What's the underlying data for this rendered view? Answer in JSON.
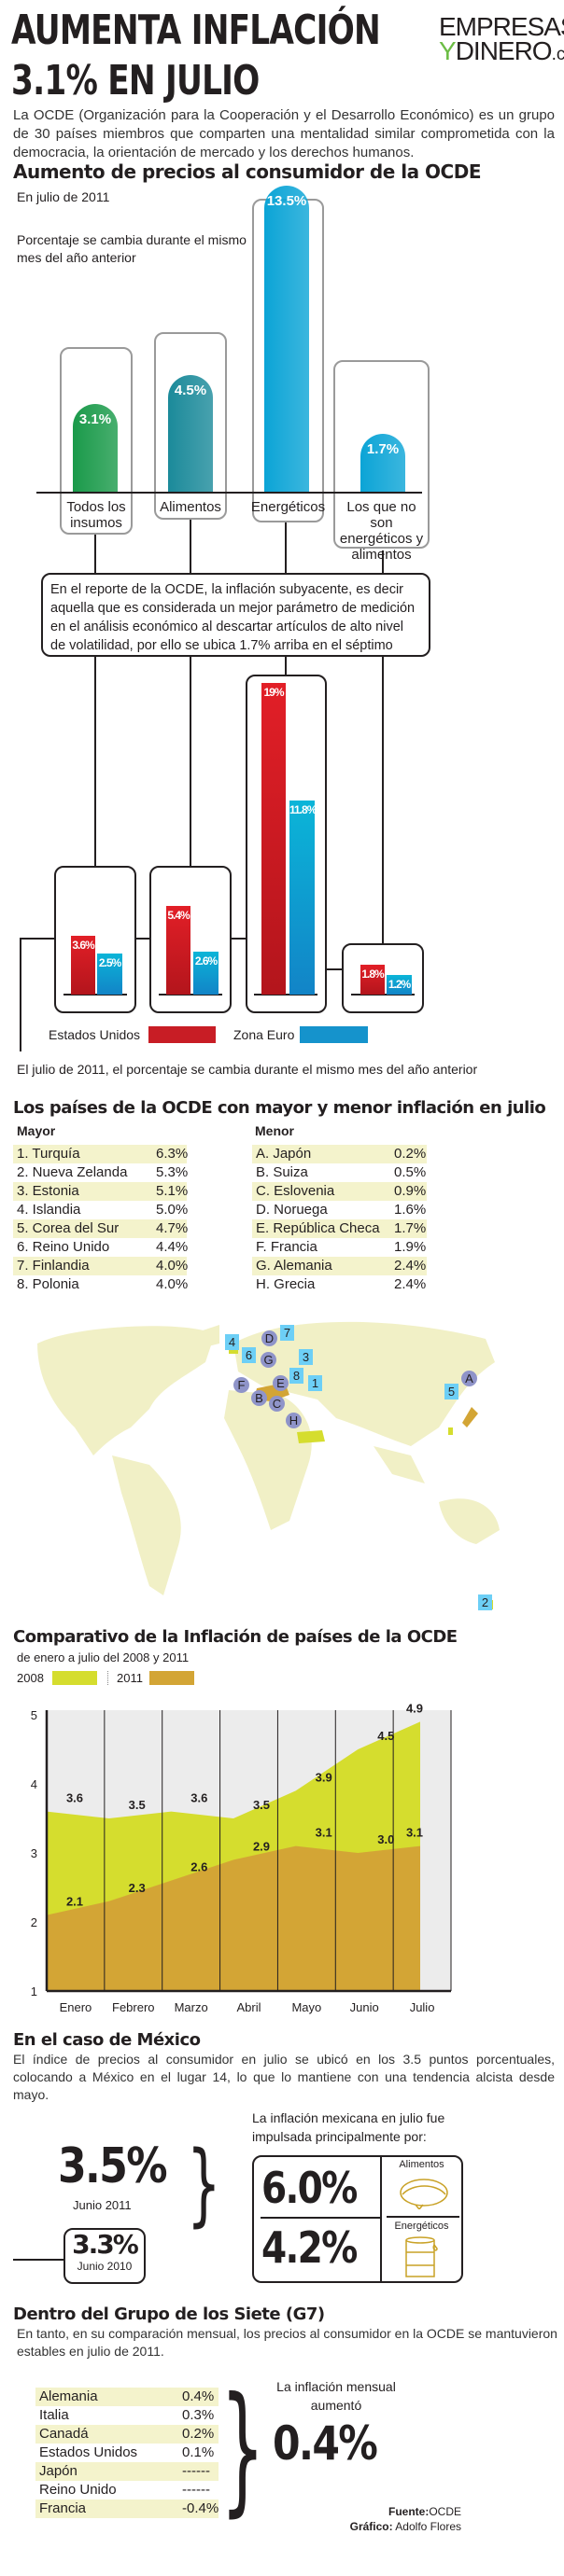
{
  "header": {
    "title_line1": "AUMENTA INFLACIÓN",
    "title_line2": "3.1% EN JULIO",
    "logo_line1": "EMPRESAS",
    "logo_y": "Y",
    "logo_line2": "DINERO",
    "logo_com": ".com"
  },
  "intro": "La OCDE (Organización para la Cooperación y el Desarrollo Económico) es un grupo de 30 países miembros que comparten una mentalidad similar comprometida con la democracia, la orientación de mercado y los derechos humanos.",
  "section1": {
    "title": "Aumento de precios al consumidor de la OCDE",
    "subtitle": "En julio de 2011",
    "note": "Porcentaje se cambia durante el mismo mes del año anterior",
    "explain": "En el reporte de la OCDE, la inflación subyacente, es decir aquella que es considerada un mejor parámetro de medición en el análisis económico al descartar artículos de alto nivel de volatilidad, por ello se ubica 1.7% arriba en el séptimo mes del año.",
    "legend_us": "Estados Unidos",
    "legend_eu": "Zona Euro",
    "caption": "El julio de 2011, el porcentaje se cambia durante el mismo mes del año anterior"
  },
  "section2": {
    "title": "Los países de la OCDE con mayor y menor inflación en julio",
    "mayor_label": "Mayor",
    "menor_label": "Menor",
    "mayor": [
      {
        "name": "1. Turquía",
        "value": "6.3%"
      },
      {
        "name": "2. Nueva Zelanda",
        "value": "5.3%"
      },
      {
        "name": "3. Estonia",
        "value": "5.1%"
      },
      {
        "name": "4. Islandia",
        "value": "5.0%"
      },
      {
        "name": "5. Corea del Sur",
        "value": "4.7%"
      },
      {
        "name": "6. Reino Unido",
        "value": "4.4%"
      },
      {
        "name": "7. Finlandia",
        "value": "4.0%"
      },
      {
        "name": "8. Polonia",
        "value": "4.0%"
      }
    ],
    "menor": [
      {
        "name": "A. Japón",
        "value": "0.2%"
      },
      {
        "name": "B. Suiza",
        "value": "0.5%"
      },
      {
        "name": "C. Eslovenia",
        "value": "0.9%"
      },
      {
        "name": "D. Noruega",
        "value": "1.6%"
      },
      {
        "name": "E. República Checa",
        "value": "1.7%"
      },
      {
        "name": "F. Francia",
        "value": "1.9%"
      },
      {
        "name": "G. Alemania",
        "value": "2.4%"
      },
      {
        "name": "H. Grecia",
        "value": "2.4%"
      }
    ],
    "map_markers": [
      "4",
      "7",
      "D",
      "6",
      "G",
      "3",
      "8",
      "1",
      "F",
      "B",
      "C",
      "E",
      "H",
      "A",
      "5",
      "2"
    ]
  },
  "section3": {
    "title": "Comparativo de la Inflación de países de la OCDE",
    "subtitle": "de enero a julio del 2008 y 2011"
  },
  "mexico": {
    "title": "En el caso de México",
    "text": "El índice de precios al consumidor en julio se ubicó en los 3.5 puntos porcentuales, colocando a México en el lugar 14, lo que lo mantiene con una tendencia alcista desde mayo.",
    "big_value": "3.5%",
    "big_label": "Junio 2011",
    "prev_value": "3.3%",
    "prev_label": "Junio 2010",
    "driver_text": "La inflación mexicana en julio fue impulsada principalmente por:",
    "drivers": [
      {
        "value": "6.0%",
        "label": "Alimentos",
        "icon": "taco-icon"
      },
      {
        "value": "4.2%",
        "label": "Energéticos",
        "icon": "oil-barrel-icon"
      }
    ]
  },
  "g7": {
    "title": "Dentro del Grupo de los Siete (G7)",
    "text": "En tanto, en su comparación mensual, los precios al consumidor en la OCDE se mantuvieron estables en julio de 2011.",
    "rows": [
      {
        "name": "Alemania",
        "value": "0.4%"
      },
      {
        "name": "Italia",
        "value": "0.3%"
      },
      {
        "name": "Canadá",
        "value": "0.2%"
      },
      {
        "name": "Estados Unidos",
        "value": "0.1%"
      },
      {
        "name": "Japón",
        "value": "------"
      },
      {
        "name": "Reino Unido",
        "value": "------"
      },
      {
        "name": "Francia",
        "value": "-0.4%"
      }
    ],
    "monthly_label": "La inflación mensual aumentó",
    "monthly_value": "0.4%"
  },
  "footer": {
    "source_label": "Fuente:",
    "source": "OCDE",
    "graphic_label": "Gráfico:",
    "graphic": "Adolfo Flores"
  },
  "colors": {
    "green_bar": "#1a9a4a",
    "teal_bar": "#1b8a9a",
    "blue_bar": "#0ba4d6",
    "us_red": "#d42027",
    "eu_blue": "#1593cc",
    "y2008": "#d5dd2e",
    "y2011": "#d3a535",
    "highlight": "#f4f3cc"
  },
  "chart_data": [
    {
      "type": "bar",
      "title": "Aumento de precios al consumidor de la OCDE",
      "subtitle": "En julio de 2011",
      "categories": [
        "Todos los insumos",
        "Alimentos",
        "Energéticos",
        "Los que no son energéticos y alimentos"
      ],
      "values": [
        3.1,
        4.5,
        13.5,
        1.7
      ],
      "labels": [
        "3.1%",
        "4.5%",
        "13.5%",
        "1.7%"
      ]
    },
    {
      "type": "bar",
      "categories": [
        "Todos los insumos",
        "Alimentos",
        "Energéticos",
        "Los que no son energéticos y alimentos"
      ],
      "series": [
        {
          "name": "Estados Unidos",
          "values": [
            3.6,
            5.4,
            19,
            1.8
          ],
          "labels": [
            "3.6%",
            "5.4%",
            "19%",
            "1.8%"
          ]
        },
        {
          "name": "Zona Euro",
          "values": [
            2.5,
            2.6,
            11.8,
            1.2
          ],
          "labels": [
            "2.5%",
            "2.6%",
            "11.8%",
            "1.2%"
          ]
        }
      ],
      "legend": "bottom"
    },
    {
      "type": "area",
      "title": "Comparativo de la Inflación de países de la OCDE",
      "subtitle": "de enero a julio del 2008 y 2011",
      "categories": [
        "Enero",
        "Febrero",
        "Marzo",
        "Abril",
        "Mayo",
        "Junio",
        "Julio"
      ],
      "yticks": [
        "1",
        "2",
        "3",
        "4",
        "5"
      ],
      "ylim": [
        1,
        5
      ],
      "legend": "top-left",
      "grid": true,
      "series": [
        {
          "name": "2008",
          "values": [
            3.6,
            3.5,
            3.6,
            3.5,
            3.9,
            4.5,
            4.9
          ],
          "labels": [
            "3.6",
            "3.5",
            "3.6",
            "3.5",
            "3.9",
            "4.5",
            "4.9"
          ]
        },
        {
          "name": "2011",
          "values": [
            2.1,
            2.3,
            2.6,
            2.9,
            3.1,
            3.0,
            3.1
          ],
          "labels": [
            "2.1",
            "2.3",
            "2.6",
            "2.9",
            "3.1",
            "3.0",
            "3.1"
          ]
        }
      ]
    }
  ]
}
